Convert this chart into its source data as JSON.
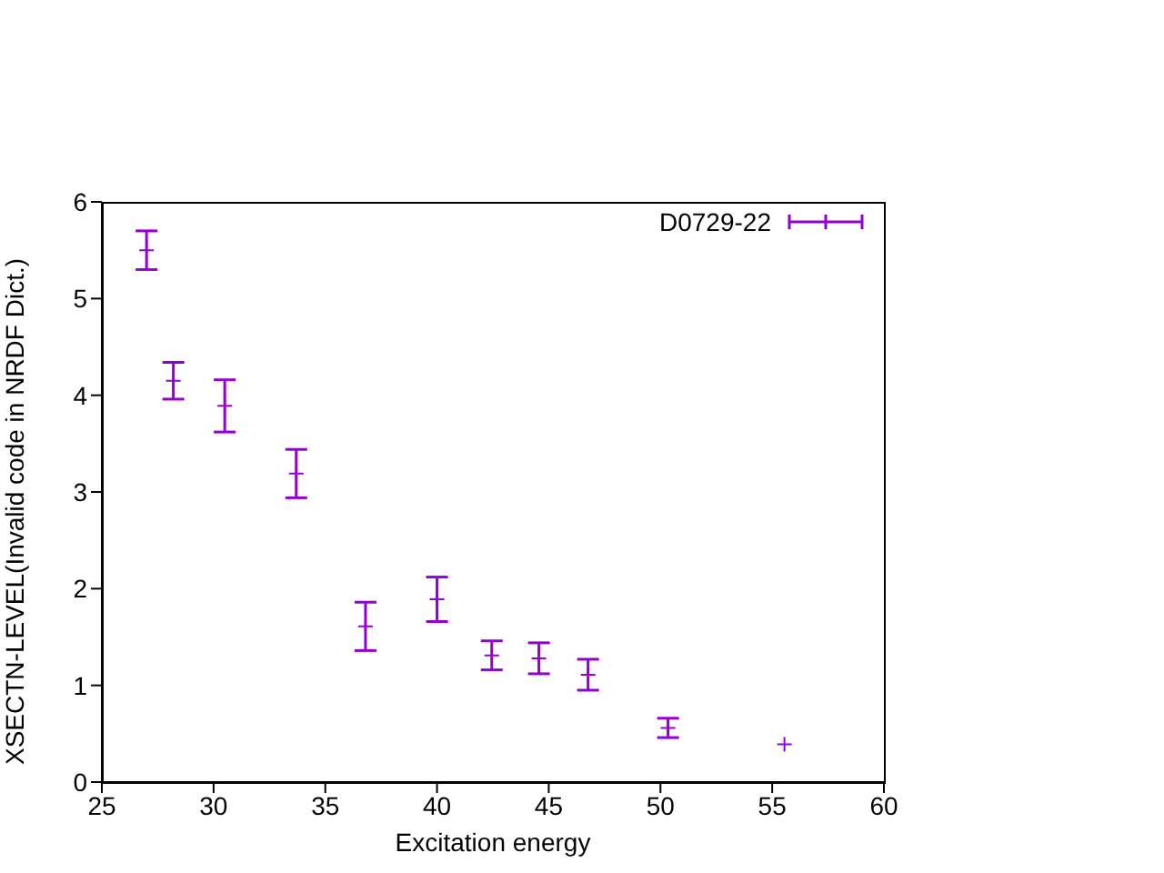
{
  "chart_data": {
    "type": "scatter",
    "xlabel": "Excitation energy",
    "ylabel": "XSECTN-LEVEL(Invalid code in NRDF Dict.)",
    "xlim": [
      25,
      60
    ],
    "xticks": [
      25,
      30,
      35,
      40,
      45,
      50,
      55,
      60
    ],
    "ylim": [
      0,
      6
    ],
    "yticks": [
      0,
      1,
      2,
      3,
      4,
      5,
      6
    ],
    "legend": "top right",
    "marker": "cross",
    "series": [
      {
        "name": "D0729-22",
        "color": "#9400d3",
        "x": [
          27.0,
          28.2,
          30.5,
          33.7,
          36.8,
          40.0,
          42.45,
          44.56,
          46.76,
          50.34,
          55.55
        ],
        "values": [
          5.5,
          4.15,
          3.89,
          3.19,
          1.61,
          1.89,
          1.31,
          1.28,
          1.11,
          0.56,
          0.39
        ],
        "errors": [
          0.2,
          0.19,
          0.27,
          0.25,
          0.25,
          0.23,
          0.15,
          0.16,
          0.16,
          0.1,
          null
        ]
      }
    ]
  }
}
